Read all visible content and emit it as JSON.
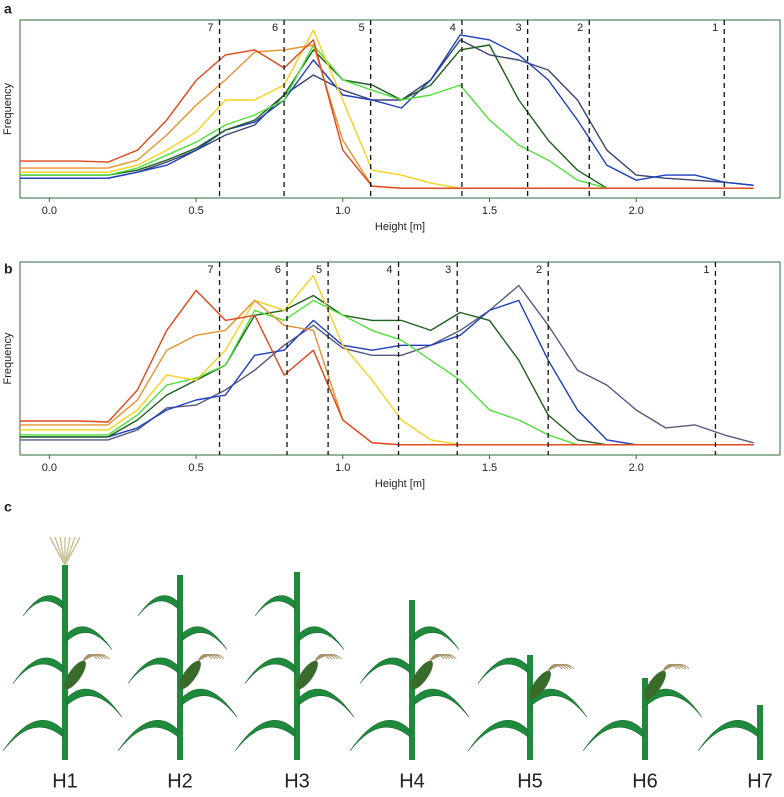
{
  "chart_data": [
    {
      "type": "line",
      "panel_label": "a",
      "x_label": "Height [m]",
      "y_label": "Frequency",
      "xlim": [
        -0.1,
        2.49
      ],
      "ylim": [
        -0.06,
        1.03
      ],
      "xticks": [
        {
          "value": 0,
          "label": "0.0"
        },
        0.5,
        {
          "value": 1,
          "label": "1.0"
        },
        1.5,
        {
          "value": 2,
          "label": "2.0"
        }
      ],
      "reference_lines": [
        {
          "value": 0.58,
          "label": "7"
        },
        {
          "value": 0.8,
          "label": "6"
        },
        {
          "value": 1.095,
          "label": "5"
        },
        {
          "value": 1.406,
          "label": "4"
        },
        {
          "value": 1.63,
          "label": "3"
        },
        {
          "value": 1.84,
          "label": "2"
        },
        {
          "value": 2.3,
          "label": "1"
        }
      ],
      "x": [
        -0.1,
        0,
        0.1,
        0.2,
        0.3,
        0.4,
        0.5,
        0.6,
        0.7,
        0.8,
        0.9,
        1.0,
        1.1,
        1.2,
        1.3,
        1.4,
        1.5,
        1.6,
        1.7,
        1.8,
        1.9,
        2.0,
        2.1,
        2.2,
        2.3,
        2.4
      ],
      "series": [
        {
          "color": "#3a4470",
          "values": [
            0.061,
            0.061,
            0.061,
            0.061,
            0.098,
            0.16,
            0.233,
            0.325,
            0.387,
            0.571,
            0.693,
            0.601,
            0.54,
            0.54,
            0.663,
            0.908,
            0.816,
            0.785,
            0.724,
            0.54,
            0.233,
            0.08,
            0.061,
            0.049,
            0.037,
            0.018
          ]
        },
        {
          "color": "#1f3fbf",
          "values": [
            0.061,
            0.061,
            0.061,
            0.061,
            0.098,
            0.141,
            0.233,
            0.356,
            0.405,
            0.54,
            0.785,
            0.571,
            0.54,
            0.491,
            0.663,
            0.939,
            0.908,
            0.816,
            0.663,
            0.417,
            0.141,
            0.049,
            0.08,
            0.08,
            0.037,
            0.018
          ]
        },
        {
          "color": "#1f5e1f",
          "values": [
            0.08,
            0.08,
            0.08,
            0.08,
            0.11,
            0.172,
            0.245,
            0.356,
            0.417,
            0.571,
            0.847,
            0.663,
            0.632,
            0.54,
            0.632,
            0.847,
            0.877,
            0.54,
            0.294,
            0.11,
            0,
            0,
            0,
            0,
            0,
            0
          ]
        },
        {
          "color": "#4fe03a",
          "values": [
            0.08,
            0.08,
            0.08,
            0.08,
            0.123,
            0.202,
            0.282,
            0.387,
            0.448,
            0.54,
            0.877,
            0.663,
            0.6,
            0.54,
            0.571,
            0.632,
            0.417,
            0.264,
            0.172,
            0.049,
            0,
            0,
            0,
            0,
            0,
            0
          ]
        },
        {
          "color": "#f5d21f",
          "values": [
            0.098,
            0.098,
            0.098,
            0.098,
            0.141,
            0.233,
            0.344,
            0.54,
            0.54,
            0.632,
            0.969,
            0.54,
            0.11,
            0.08,
            0.031,
            0,
            0,
            0,
            0,
            0,
            0,
            0,
            0,
            0,
            0,
            0
          ]
        },
        {
          "color": "#e8912e",
          "values": [
            0.123,
            0.123,
            0.123,
            0.123,
            0.172,
            0.325,
            0.509,
            0.663,
            0.834,
            0.847,
            0.877,
            0.294,
            0.012,
            0,
            0,
            0,
            0,
            0,
            0,
            0,
            0,
            0,
            0,
            0,
            0,
            0
          ]
        },
        {
          "color": "#e2461b",
          "values": [
            0.166,
            0.166,
            0.166,
            0.16,
            0.233,
            0.417,
            0.66,
            0.816,
            0.847,
            0.736,
            0.908,
            0.233,
            0.012,
            0,
            0,
            0,
            0,
            0,
            0,
            0,
            0,
            0,
            0,
            0,
            0,
            0
          ]
        }
      ]
    },
    {
      "type": "line",
      "panel_label": "b",
      "x_label": "Height [m]",
      "y_label": "Frequency",
      "xlim": [
        -0.1,
        2.49
      ],
      "ylim": [
        -0.06,
        1.08
      ],
      "xticks": [
        {
          "value": 0,
          "label": "0.0"
        },
        0.5,
        {
          "value": 1,
          "label": "1.0"
        },
        1.5,
        {
          "value": 2,
          "label": "2.0"
        }
      ],
      "reference_lines": [
        {
          "value": 0.58,
          "label": "7"
        },
        {
          "value": 0.81,
          "label": "6"
        },
        {
          "value": 0.95,
          "label": "5"
        },
        {
          "value": 1.19,
          "label": "4"
        },
        {
          "value": 1.39,
          "label": "3"
        },
        {
          "value": 1.7,
          "label": "2"
        },
        {
          "value": 2.27,
          "label": "1"
        }
      ],
      "x": [
        -0.1,
        0,
        0.1,
        0.2,
        0.3,
        0.4,
        0.5,
        0.6,
        0.7,
        0.8,
        0.9,
        1.0,
        1.1,
        1.2,
        1.3,
        1.4,
        1.5,
        1.6,
        1.7,
        1.8,
        1.9,
        2.0,
        2.1,
        2.2,
        2.3,
        2.4
      ],
      "series": [
        {
          "color": "#555a80",
          "values": [
            0.029,
            0.029,
            0.029,
            0.029,
            0.088,
            0.218,
            0.235,
            0.324,
            0.441,
            0.588,
            0.706,
            0.571,
            0.529,
            0.529,
            0.588,
            0.676,
            0.794,
            0.941,
            0.706,
            0.441,
            0.353,
            0.206,
            0.1,
            0.118,
            0.059,
            0.012
          ]
        },
        {
          "color": "#1f3fbf",
          "values": [
            0.047,
            0.047,
            0.047,
            0.047,
            0.1,
            0.206,
            0.265,
            0.294,
            0.529,
            0.559,
            0.735,
            0.588,
            0.559,
            0.588,
            0.588,
            0.647,
            0.794,
            0.853,
            0.5,
            0.206,
            0.029,
            0,
            0,
            0,
            0,
            0
          ]
        },
        {
          "color": "#1f5e1f",
          "values": [
            0.047,
            0.047,
            0.047,
            0.047,
            0.147,
            0.294,
            0.382,
            0.471,
            0.765,
            0.794,
            0.882,
            0.765,
            0.735,
            0.735,
            0.676,
            0.782,
            0.735,
            0.5,
            0.176,
            0.029,
            0,
            0,
            0,
            0,
            0,
            0
          ]
        },
        {
          "color": "#4fe03a",
          "values": [
            0.059,
            0.059,
            0.059,
            0.059,
            0.176,
            0.353,
            0.394,
            0.471,
            0.794,
            0.735,
            0.853,
            0.765,
            0.676,
            0.618,
            0.5,
            0.382,
            0.206,
            0.147,
            0.059,
            0,
            0,
            0,
            0,
            0,
            0,
            0
          ]
        },
        {
          "color": "#f5d21f",
          "values": [
            0.088,
            0.088,
            0.088,
            0.088,
            0.206,
            0.412,
            0.382,
            0.559,
            0.853,
            0.794,
            1.0,
            0.588,
            0.382,
            0.147,
            0.029,
            0,
            0,
            0,
            0,
            0,
            0,
            0,
            0,
            0,
            0,
            0
          ]
        },
        {
          "color": "#e8912e",
          "values": [
            0.118,
            0.118,
            0.118,
            0.118,
            0.265,
            0.559,
            0.647,
            0.676,
            0.853,
            0.706,
            0.676,
            0.147,
            0.012,
            0,
            0,
            0,
            0,
            0,
            0,
            0,
            0,
            0,
            0,
            0,
            0,
            0
          ]
        },
        {
          "color": "#e2461b",
          "values": [
            0.141,
            0.141,
            0.141,
            0.135,
            0.324,
            0.676,
            0.912,
            0.735,
            0.765,
            0.412,
            0.559,
            0.147,
            0.012,
            0,
            0,
            0,
            0,
            0,
            0,
            0,
            0,
            0,
            0,
            0,
            0,
            0
          ]
        }
      ]
    }
  ],
  "illustration": {
    "panel_label": "c",
    "labels": [
      "H1",
      "H2",
      "H3",
      "H4",
      "H5",
      "H6",
      "H7"
    ]
  }
}
